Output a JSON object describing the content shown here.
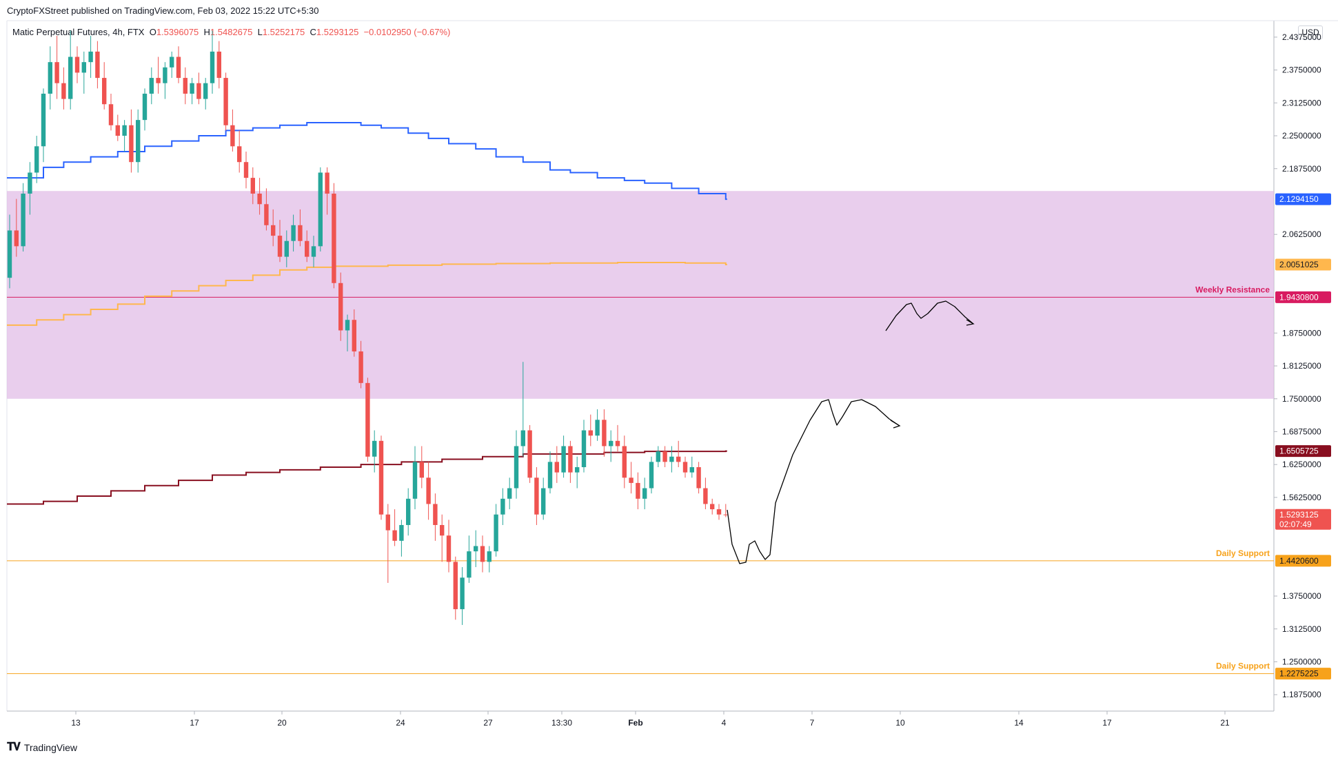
{
  "publish_line": "CryptoFXStreet published on TradingView.com, Feb 03, 2022 15:22 UTC+5:30",
  "footer_brand": "TradingView",
  "legend": {
    "symbol": "Matic Perpetual Futures, 4h, FTX",
    "open_label": "O",
    "open": "1.5396075",
    "high_label": "H",
    "high": "1.5482675",
    "low_label": "L",
    "low": "1.5252175",
    "close_label": "C",
    "close": "1.5293125",
    "change": "−0.0102950 (−0.67%)"
  },
  "currency": "USD",
  "colors": {
    "bull": "#26a69a",
    "bear": "#ef5350",
    "blue_line": "#2962ff",
    "orange_line": "#ffb74d",
    "maroon_line": "#880e1f",
    "zone": "#e1bee7",
    "support": "#f7a21b",
    "resistance": "#d81b60"
  },
  "chart_data": {
    "type": "candlestick",
    "ylim": [
      1.1563,
      2.4688
    ],
    "y_ticks": [
      "2.4375000",
      "2.3750000",
      "2.3125000",
      "2.2500000",
      "2.1875000",
      "2.0625000",
      "1.8750000",
      "1.8125000",
      "1.7500000",
      "1.6875000",
      "1.6250000",
      "1.5625000",
      "1.3750000",
      "1.3125000",
      "1.2500000",
      "1.1875000"
    ],
    "x_ticks": [
      "13",
      "17",
      "20",
      "24",
      "27",
      "13:30",
      "Feb",
      "4",
      "7",
      "10",
      "14",
      "17",
      "21"
    ],
    "price_labels": [
      {
        "value": "2.1294150",
        "color": "#2962ff"
      },
      {
        "value": "2.0051025",
        "color": "#ffb74d"
      },
      {
        "value": "1.9430800",
        "color": "#d81b60"
      },
      {
        "value": "1.6505725",
        "color": "#880e1f"
      },
      {
        "value": "1.5293125",
        "color": "#ef5350",
        "countdown": "02:07:49"
      },
      {
        "value": "1.4420600",
        "color": "#f7a21b"
      },
      {
        "value": "1.2275225",
        "color": "#f7a21b"
      }
    ],
    "levels": [
      {
        "name": "Weekly Resistance",
        "value": 1.94308
      },
      {
        "name": "Daily Support",
        "value": 1.44206
      },
      {
        "name": "Daily Support",
        "value": 1.22752
      }
    ],
    "zone": {
      "from": 1.75,
      "to": 2.145
    },
    "lines": {
      "blue": [
        [
          0,
          2.17
        ],
        [
          5,
          2.19
        ],
        [
          8,
          2.2
        ],
        [
          12,
          2.21
        ],
        [
          16,
          2.22
        ],
        [
          20,
          2.23
        ],
        [
          24,
          2.24
        ],
        [
          28,
          2.25
        ],
        [
          32,
          2.26
        ],
        [
          36,
          2.265
        ],
        [
          40,
          2.27
        ],
        [
          44,
          2.275
        ],
        [
          48,
          2.275
        ],
        [
          52,
          2.27
        ],
        [
          55,
          2.265
        ],
        [
          59,
          2.255
        ],
        [
          62,
          2.245
        ],
        [
          65,
          2.235
        ],
        [
          69,
          2.225
        ],
        [
          72,
          2.21
        ],
        [
          76,
          2.2
        ],
        [
          80,
          2.185
        ],
        [
          83,
          2.18
        ],
        [
          87,
          2.17
        ],
        [
          91,
          2.165
        ],
        [
          94,
          2.16
        ],
        [
          98,
          2.15
        ],
        [
          102,
          2.14
        ],
        [
          106,
          2.1294
        ]
      ],
      "orange": [
        [
          0,
          1.89
        ],
        [
          4,
          1.9
        ],
        [
          8,
          1.91
        ],
        [
          12,
          1.92
        ],
        [
          16,
          1.93
        ],
        [
          20,
          1.945
        ],
        [
          24,
          1.955
        ],
        [
          28,
          1.965
        ],
        [
          32,
          1.975
        ],
        [
          36,
          1.985
        ],
        [
          40,
          1.995
        ],
        [
          44,
          2.0
        ],
        [
          48,
          2.002
        ],
        [
          56,
          2.004
        ],
        [
          64,
          2.006
        ],
        [
          72,
          2.007
        ],
        [
          80,
          2.008
        ],
        [
          90,
          2.009
        ],
        [
          100,
          2.008
        ],
        [
          106,
          2.0051
        ]
      ],
      "maroon": [
        [
          0,
          1.55
        ],
        [
          5,
          1.555
        ],
        [
          10,
          1.565
        ],
        [
          15,
          1.575
        ],
        [
          20,
          1.585
        ],
        [
          25,
          1.595
        ],
        [
          30,
          1.605
        ],
        [
          35,
          1.61
        ],
        [
          40,
          1.615
        ],
        [
          46,
          1.62
        ],
        [
          52,
          1.625
        ],
        [
          58,
          1.63
        ],
        [
          64,
          1.635
        ],
        [
          70,
          1.64
        ],
        [
          76,
          1.645
        ],
        [
          82,
          1.645
        ],
        [
          88,
          1.648
        ],
        [
          94,
          1.65
        ],
        [
          100,
          1.65
        ],
        [
          106,
          1.6506
        ]
      ]
    },
    "candles": [
      [
        1.98,
        2.1,
        1.96,
        2.07
      ],
      [
        2.07,
        2.13,
        2.02,
        2.04
      ],
      [
        2.04,
        2.16,
        2.03,
        2.14
      ],
      [
        2.14,
        2.2,
        2.1,
        2.18
      ],
      [
        2.18,
        2.25,
        2.16,
        2.23
      ],
      [
        2.23,
        2.34,
        2.2,
        2.33
      ],
      [
        2.33,
        2.42,
        2.3,
        2.39
      ],
      [
        2.39,
        2.44,
        2.32,
        2.35
      ],
      [
        2.35,
        2.38,
        2.3,
        2.32
      ],
      [
        2.32,
        2.45,
        2.3,
        2.4
      ],
      [
        2.4,
        2.42,
        2.35,
        2.37
      ],
      [
        2.37,
        2.41,
        2.33,
        2.39
      ],
      [
        2.39,
        2.44,
        2.36,
        2.41
      ],
      [
        2.41,
        2.43,
        2.34,
        2.36
      ],
      [
        2.36,
        2.39,
        2.3,
        2.31
      ],
      [
        2.31,
        2.33,
        2.26,
        2.27
      ],
      [
        2.27,
        2.29,
        2.24,
        2.25
      ],
      [
        2.25,
        2.28,
        2.22,
        2.27
      ],
      [
        2.27,
        2.3,
        2.18,
        2.2
      ],
      [
        2.2,
        2.3,
        2.18,
        2.28
      ],
      [
        2.28,
        2.34,
        2.26,
        2.33
      ],
      [
        2.33,
        2.38,
        2.31,
        2.36
      ],
      [
        2.36,
        2.4,
        2.33,
        2.35
      ],
      [
        2.35,
        2.39,
        2.32,
        2.38
      ],
      [
        2.38,
        2.41,
        2.36,
        2.4
      ],
      [
        2.4,
        2.42,
        2.35,
        2.36
      ],
      [
        2.36,
        2.38,
        2.31,
        2.33
      ],
      [
        2.33,
        2.36,
        2.31,
        2.35
      ],
      [
        2.35,
        2.37,
        2.31,
        2.32
      ],
      [
        2.32,
        2.36,
        2.3,
        2.35
      ],
      [
        2.35,
        2.45,
        2.33,
        2.41
      ],
      [
        2.41,
        2.43,
        2.34,
        2.36
      ],
      [
        2.36,
        2.37,
        2.26,
        2.27
      ],
      [
        2.27,
        2.3,
        2.22,
        2.23
      ],
      [
        2.23,
        2.26,
        2.18,
        2.2
      ],
      [
        2.2,
        2.22,
        2.15,
        2.17
      ],
      [
        2.17,
        2.19,
        2.12,
        2.14
      ],
      [
        2.14,
        2.17,
        2.1,
        2.12
      ],
      [
        2.12,
        2.15,
        2.07,
        2.08
      ],
      [
        2.08,
        2.11,
        2.04,
        2.06
      ],
      [
        2.06,
        2.09,
        2.01,
        2.02
      ],
      [
        2.02,
        2.07,
        2.0,
        2.05
      ],
      [
        2.05,
        2.1,
        2.03,
        2.08
      ],
      [
        2.08,
        2.11,
        2.04,
        2.05
      ],
      [
        2.05,
        2.07,
        2.01,
        2.02
      ],
      [
        2.02,
        2.06,
        2.0,
        2.04
      ],
      [
        2.04,
        2.19,
        2.03,
        2.18
      ],
      [
        2.18,
        2.19,
        2.1,
        2.14
      ],
      [
        2.14,
        2.16,
        1.96,
        1.97
      ],
      [
        1.97,
        1.99,
        1.86,
        1.88
      ],
      [
        1.88,
        1.91,
        1.84,
        1.9
      ],
      [
        1.9,
        1.92,
        1.83,
        1.84
      ],
      [
        1.84,
        1.86,
        1.77,
        1.78
      ],
      [
        1.78,
        1.79,
        1.63,
        1.64
      ],
      [
        1.64,
        1.69,
        1.61,
        1.67
      ],
      [
        1.67,
        1.68,
        1.52,
        1.53
      ],
      [
        1.53,
        1.55,
        1.4,
        1.5
      ],
      [
        1.5,
        1.54,
        1.47,
        1.48
      ],
      [
        1.48,
        1.52,
        1.45,
        1.51
      ],
      [
        1.51,
        1.58,
        1.49,
        1.56
      ],
      [
        1.56,
        1.66,
        1.54,
        1.63
      ],
      [
        1.63,
        1.66,
        1.58,
        1.6
      ],
      [
        1.6,
        1.63,
        1.52,
        1.55
      ],
      [
        1.55,
        1.57,
        1.48,
        1.51
      ],
      [
        1.51,
        1.53,
        1.44,
        1.49
      ],
      [
        1.49,
        1.52,
        1.42,
        1.44
      ],
      [
        1.44,
        1.45,
        1.33,
        1.35
      ],
      [
        1.35,
        1.43,
        1.32,
        1.41
      ],
      [
        1.41,
        1.49,
        1.4,
        1.46
      ],
      [
        1.46,
        1.5,
        1.43,
        1.47
      ],
      [
        1.47,
        1.49,
        1.42,
        1.44
      ],
      [
        1.44,
        1.47,
        1.42,
        1.46
      ],
      [
        1.46,
        1.55,
        1.45,
        1.53
      ],
      [
        1.53,
        1.58,
        1.51,
        1.56
      ],
      [
        1.56,
        1.6,
        1.54,
        1.58
      ],
      [
        1.58,
        1.69,
        1.56,
        1.66
      ],
      [
        1.66,
        1.82,
        1.64,
        1.69
      ],
      [
        1.69,
        1.7,
        1.59,
        1.6
      ],
      [
        1.6,
        1.62,
        1.51,
        1.53
      ],
      [
        1.53,
        1.6,
        1.52,
        1.58
      ],
      [
        1.58,
        1.65,
        1.57,
        1.63
      ],
      [
        1.63,
        1.66,
        1.59,
        1.61
      ],
      [
        1.61,
        1.68,
        1.6,
        1.66
      ],
      [
        1.66,
        1.67,
        1.59,
        1.61
      ],
      [
        1.61,
        1.64,
        1.58,
        1.62
      ],
      [
        1.62,
        1.71,
        1.61,
        1.69
      ],
      [
        1.69,
        1.72,
        1.66,
        1.68
      ],
      [
        1.68,
        1.73,
        1.67,
        1.71
      ],
      [
        1.71,
        1.73,
        1.64,
        1.66
      ],
      [
        1.66,
        1.69,
        1.63,
        1.67
      ],
      [
        1.67,
        1.7,
        1.65,
        1.66
      ],
      [
        1.66,
        1.68,
        1.58,
        1.6
      ],
      [
        1.6,
        1.63,
        1.57,
        1.59
      ],
      [
        1.59,
        1.61,
        1.54,
        1.56
      ],
      [
        1.56,
        1.6,
        1.54,
        1.58
      ],
      [
        1.58,
        1.64,
        1.57,
        1.63
      ],
      [
        1.63,
        1.66,
        1.62,
        1.65
      ],
      [
        1.65,
        1.66,
        1.62,
        1.63
      ],
      [
        1.63,
        1.66,
        1.61,
        1.64
      ],
      [
        1.64,
        1.67,
        1.62,
        1.63
      ],
      [
        1.63,
        1.64,
        1.6,
        1.61
      ],
      [
        1.61,
        1.64,
        1.6,
        1.62
      ],
      [
        1.62,
        1.63,
        1.57,
        1.58
      ],
      [
        1.58,
        1.6,
        1.54,
        1.55
      ],
      [
        1.55,
        1.56,
        1.53,
        1.54
      ],
      [
        1.54,
        1.55,
        1.52,
        1.53
      ],
      [
        1.53,
        1.55,
        1.525,
        1.529
      ]
    ],
    "drawings": [
      [
        [
          1055,
          740
        ],
        [
          1062,
          790
        ],
        [
          1073,
          818
        ],
        [
          1082,
          816
        ],
        [
          1087,
          790
        ],
        [
          1095,
          785
        ],
        [
          1102,
          800
        ],
        [
          1110,
          812
        ],
        [
          1117,
          805
        ],
        [
          1125,
          730
        ],
        [
          1150,
          660
        ],
        [
          1175,
          610
        ],
        [
          1192,
          583
        ],
        [
          1202,
          580
        ],
        [
          1208,
          600
        ],
        [
          1214,
          617
        ],
        [
          1222,
          605
        ],
        [
          1235,
          583
        ],
        [
          1250,
          580
        ],
        [
          1270,
          590
        ],
        [
          1290,
          608
        ],
        [
          1305,
          618
        ]
      ],
      [
        [
          1285,
          480
        ],
        [
          1300,
          458
        ],
        [
          1315,
          442
        ],
        [
          1322,
          440
        ],
        [
          1330,
          455
        ],
        [
          1336,
          462
        ],
        [
          1346,
          455
        ],
        [
          1360,
          440
        ],
        [
          1372,
          437
        ],
        [
          1385,
          445
        ],
        [
          1400,
          460
        ],
        [
          1412,
          470
        ]
      ]
    ],
    "arrows": [
      [
        [
          1292,
          610
        ],
        [
          1305,
          618
        ],
        [
          1296,
          621
        ]
      ],
      [
        [
          1402,
          464
        ],
        [
          1412,
          470
        ],
        [
          1402,
          472
        ]
      ]
    ]
  }
}
